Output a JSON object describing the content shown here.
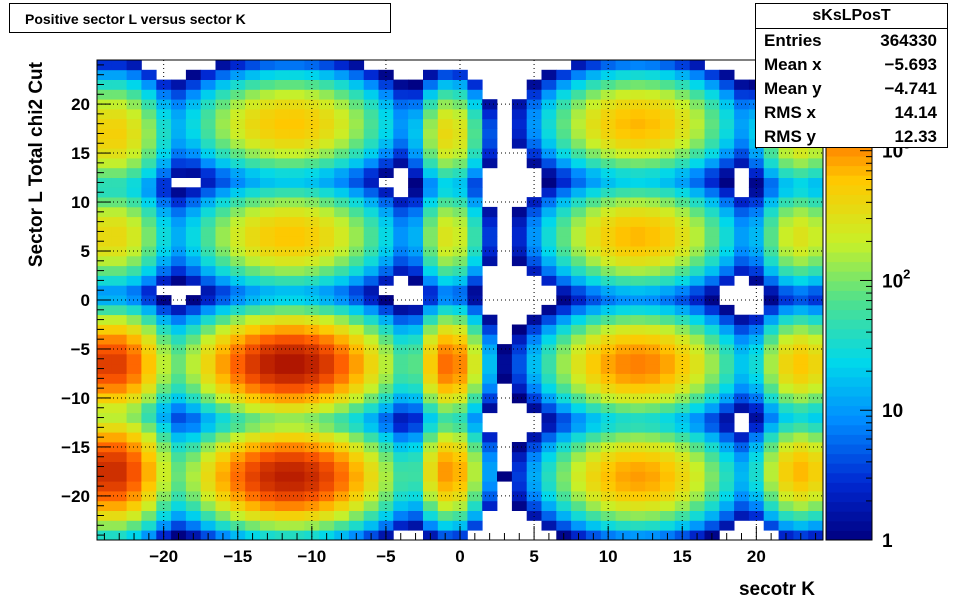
{
  "title": "Positive sector L versus sector K",
  "stats": {
    "name": "sKsLPosT",
    "rows": [
      {
        "label": "Entries",
        "value": "364330"
      },
      {
        "label": "Mean x",
        "value": "−5.693"
      },
      {
        "label": "Mean y",
        "value": "−4.741"
      },
      {
        "label": "RMS x",
        "value": "14.14"
      },
      {
        "label": "RMS y",
        "value": "12.33"
      }
    ]
  },
  "chart_data": {
    "type": "heatmap",
    "xlabel": "secotr K",
    "ylabel": "Sector L  Total chi2 Cut",
    "xlim": [
      -24.5,
      24.5
    ],
    "ylim": [
      -24.5,
      24.5
    ],
    "x_ticks": [
      -20,
      -15,
      -10,
      -5,
      0,
      5,
      10,
      15,
      20
    ],
    "y_ticks": [
      -20,
      -15,
      -10,
      -5,
      0,
      5,
      10,
      15,
      20
    ],
    "grid": true,
    "color_scale": "log",
    "z_range": [
      1,
      5000
    ],
    "colorbar_ticks": [
      {
        "value": 1,
        "label": "1"
      },
      {
        "value": 10,
        "label": "10"
      },
      {
        "value": 100,
        "label": "10^2"
      },
      {
        "value": 1000,
        "label": "10^3"
      }
    ],
    "cell_size": 1,
    "blobs": [
      {
        "x": -11.5,
        "y": 18.0,
        "sx": 2.6,
        "sy": 2.0,
        "amp": 600
      },
      {
        "x": -11.5,
        "y": 6.5,
        "sx": 2.6,
        "sy": 2.0,
        "amp": 600
      },
      {
        "x": -11.5,
        "y": -6.5,
        "sx": 2.6,
        "sy": 2.0,
        "amp": 4000
      },
      {
        "x": -11.5,
        "y": -18.0,
        "sx": 2.6,
        "sy": 2.0,
        "amp": 3500
      },
      {
        "x": 12.0,
        "y": 18.0,
        "sx": 2.4,
        "sy": 2.0,
        "amp": 700
      },
      {
        "x": 12.0,
        "y": 6.5,
        "sx": 2.4,
        "sy": 2.0,
        "amp": 700
      },
      {
        "x": 12.0,
        "y": -6.5,
        "sx": 2.4,
        "sy": 2.0,
        "amp": 1200
      },
      {
        "x": 12.0,
        "y": -18.0,
        "sx": 2.4,
        "sy": 2.0,
        "amp": 900
      },
      {
        "x": -23.5,
        "y": 17.0,
        "sx": 1.5,
        "sy": 2.2,
        "amp": 500
      },
      {
        "x": -23.5,
        "y": 6.5,
        "sx": 1.5,
        "sy": 2.0,
        "amp": 400
      },
      {
        "x": -23.5,
        "y": -6.5,
        "sx": 1.5,
        "sy": 2.0,
        "amp": 2500
      },
      {
        "x": -23.5,
        "y": -17.5,
        "sx": 1.5,
        "sy": 2.2,
        "amp": 3000
      },
      {
        "x": 23.0,
        "y": 17.0,
        "sx": 1.2,
        "sy": 2.0,
        "amp": 400
      },
      {
        "x": 23.0,
        "y": 6.5,
        "sx": 1.2,
        "sy": 2.0,
        "amp": 300
      },
      {
        "x": 23.0,
        "y": -6.5,
        "sx": 1.2,
        "sy": 2.0,
        "amp": 600
      },
      {
        "x": 23.0,
        "y": -17.5,
        "sx": 1.2,
        "sy": 2.0,
        "amp": 700
      },
      {
        "x": -0.7,
        "y": 17.0,
        "sx": 0.9,
        "sy": 2.0,
        "amp": 400
      },
      {
        "x": -0.7,
        "y": 6.5,
        "sx": 0.9,
        "sy": 2.0,
        "amp": 300
      },
      {
        "x": -0.7,
        "y": -6.5,
        "sx": 0.9,
        "sy": 2.0,
        "amp": 1500
      },
      {
        "x": -0.7,
        "y": -17.5,
        "sx": 0.9,
        "sy": 2.0,
        "amp": 1000
      }
    ]
  }
}
